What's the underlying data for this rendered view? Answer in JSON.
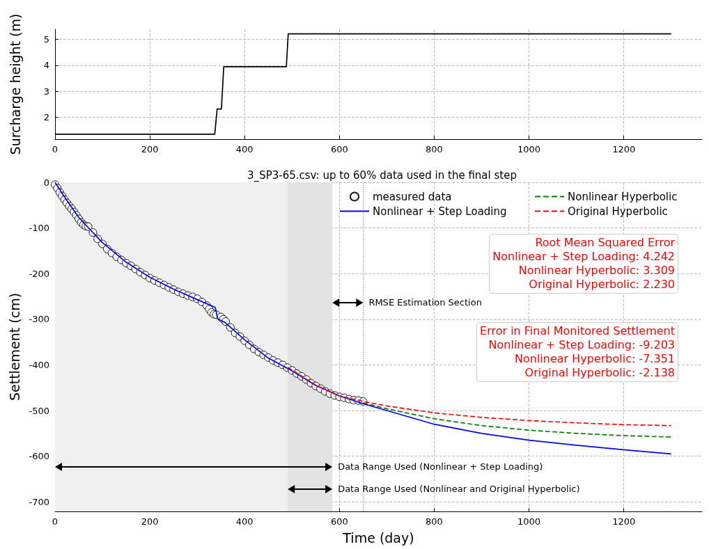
{
  "chart_data": [
    {
      "type": "line",
      "ylabel": "Surcharge height (m)",
      "xlim": [
        0,
        1365
      ],
      "ylim": [
        1.16,
        5.39
      ],
      "xticks": [
        0,
        200,
        400,
        600,
        800,
        1000,
        1200
      ],
      "yticks": [
        2,
        3,
        4,
        5
      ],
      "grid": true,
      "marker": "none",
      "line_style": "solid",
      "series": [
        {
          "color": "#000000",
          "x": [
            0,
            337,
            342,
            351,
            356,
            488,
            492,
            1300
          ],
          "values": [
            1.35,
            1.35,
            2.32,
            2.32,
            3.95,
            3.95,
            5.21,
            5.21
          ]
        }
      ]
    },
    {
      "type": "line",
      "title": "3_SP3-65.csv: up to 60% data used in the final step",
      "xlabel": "Time (day)",
      "ylabel": "Settlement (cm)",
      "xlim": [
        0,
        1365
      ],
      "ylim": [
        -721,
        0
      ],
      "xticks": [
        0,
        200,
        400,
        600,
        800,
        1000,
        1200
      ],
      "yticks": [
        0,
        -100,
        -200,
        -300,
        -400,
        -500,
        -600,
        -700
      ],
      "grid": true,
      "legend": "top right",
      "series": [
        {
          "name": "measured data",
          "type": "scatter",
          "marker": "circle",
          "color": "#000000",
          "x": [
            0,
            5,
            10,
            15,
            20,
            25,
            30,
            35,
            40,
            45,
            50,
            55,
            60,
            65,
            70,
            80,
            90,
            100,
            110,
            120,
            130,
            140,
            150,
            160,
            170,
            180,
            190,
            200,
            210,
            220,
            230,
            240,
            250,
            260,
            270,
            280,
            290,
            300,
            310,
            320,
            325,
            330,
            335,
            340,
            350,
            355,
            360,
            370,
            380,
            390,
            400,
            410,
            420,
            430,
            440,
            450,
            460,
            470,
            480,
            490,
            500,
            510,
            520,
            530,
            540,
            550,
            560,
            570,
            580,
            590,
            600,
            610,
            620,
            630,
            640,
            650
          ],
          "values": [
            -5,
            -13,
            -22,
            -30,
            -38,
            -45,
            -52,
            -58,
            -65,
            -72,
            -80,
            -88,
            -93,
            -96,
            -97,
            -110,
            -124,
            -135,
            -146,
            -155,
            -163,
            -170,
            -177,
            -183,
            -190,
            -197,
            -203,
            -210,
            -215,
            -220,
            -225,
            -230,
            -235,
            -240,
            -244,
            -248,
            -251,
            -255,
            -262,
            -270,
            -278,
            -285,
            -289,
            -290,
            -295,
            -300,
            -305,
            -318,
            -330,
            -338,
            -347,
            -356,
            -365,
            -372,
            -378,
            -384,
            -390,
            -395,
            -400,
            -406,
            -412,
            -419,
            -425,
            -432,
            -440,
            -446,
            -452,
            -458,
            -463,
            -467,
            -470,
            -472,
            -475,
            -477,
            -478,
            -480
          ]
        },
        {
          "name": "Nonlinear + Step Loading",
          "marker": "none",
          "line_style": "solid",
          "color": "#0000ff",
          "x": [
            0,
            20,
            50,
            100,
            150,
            200,
            250,
            300,
            338,
            343,
            360,
            400,
            450,
            500,
            550,
            600,
            650,
            700,
            800,
            900,
            1000,
            1100,
            1200,
            1300
          ],
          "values": [
            0,
            -32,
            -77,
            -132,
            -175,
            -208,
            -234,
            -257,
            -274,
            -299,
            -308,
            -345,
            -385,
            -413,
            -445,
            -468,
            -485,
            -500,
            -530,
            -550,
            -565,
            -576,
            -586,
            -595
          ]
        },
        {
          "name": "Nonlinear Hyperbolic",
          "marker": "none",
          "line_style": "dashed",
          "color": "#008000",
          "x": [
            650,
            700,
            800,
            900,
            1000,
            1100,
            1200,
            1300
          ],
          "values": [
            -483,
            -496,
            -518,
            -533,
            -543,
            -550,
            -555,
            -558
          ]
        },
        {
          "name": "Original Hyperbolic",
          "marker": "none",
          "line_style": "dashed",
          "color": "#ff0000",
          "x": [
            491,
            500,
            550,
            600,
            650,
            700,
            800,
            900,
            1000,
            1100,
            1200,
            1300
          ],
          "values": [
            -405,
            -411,
            -444,
            -468,
            -480,
            -490,
            -505,
            -515,
            -522,
            -527,
            -531,
            -533
          ]
        }
      ],
      "bands": [
        {
          "axis": "x",
          "from": 0,
          "to": 585,
          "color": "#f0f0f0"
        },
        {
          "axis": "x",
          "from": 491,
          "to": 585,
          "color": "#e3e3e3"
        }
      ],
      "ref_lines": [
        {
          "axis": "x",
          "value": 650,
          "color": "#aaaaaa",
          "line_style": "dotted"
        }
      ],
      "annotations": [
        "RMSE Estimation Section",
        "Data Range Used (Nonlinear + Step Loading)",
        "Data Range Used (Nonlinear and Original Hyperbolic)",
        "Root Mean Squared Error\nNonlinear + Step Loading: 4.242\nNonlinear Hyperbolic: 3.309\nOriginal Hyperbolic: 2.230",
        "Error in Final Monitored Settlement\nNonlinear + Step Loading: -9.203\nNonlinear Hyperbolic: -7.351\nOriginal Hyperbolic: -2.138"
      ]
    }
  ]
}
